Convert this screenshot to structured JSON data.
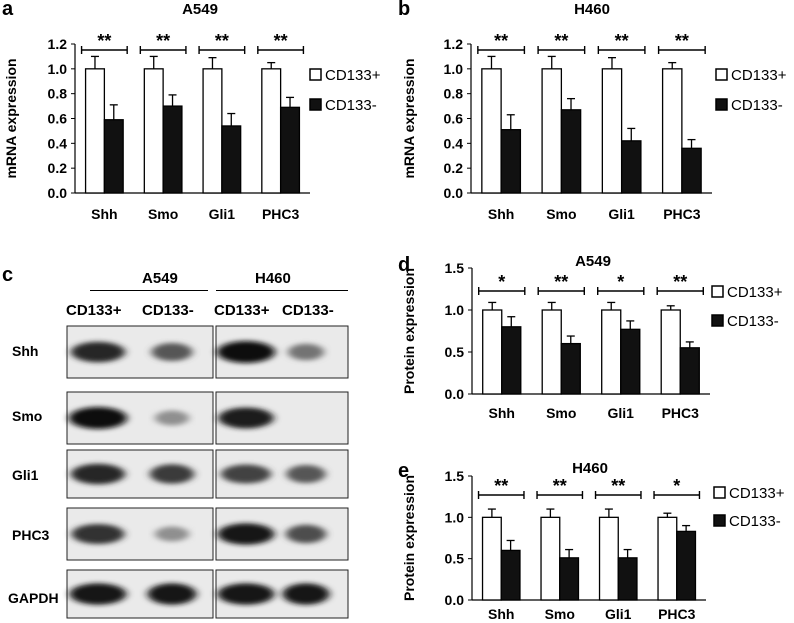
{
  "panels": {
    "a": "a",
    "b": "b",
    "c": "c",
    "d": "d",
    "e": "e"
  },
  "chart_data": [
    {
      "id": "a",
      "type": "bar",
      "title": "A549",
      "ylabel": "mRNA expression",
      "xlabel": "",
      "categories": [
        "Shh",
        "Smo",
        "Gli1",
        "PHC3"
      ],
      "ylim": [
        0,
        1.2
      ],
      "yticks": [
        "0.0",
        "0.2",
        "0.4",
        "0.6",
        "0.8",
        "1.0",
        "1.2"
      ],
      "series": [
        {
          "name": "CD133+",
          "values": [
            1.0,
            1.0,
            1.0,
            1.0
          ],
          "errors": [
            0.1,
            0.1,
            0.09,
            0.05
          ]
        },
        {
          "name": "CD133-",
          "values": [
            0.59,
            0.7,
            0.54,
            0.69
          ],
          "errors": [
            0.12,
            0.09,
            0.1,
            0.08
          ]
        }
      ],
      "significance": [
        "**",
        "**",
        "**",
        "**"
      ],
      "legend_position": "right"
    },
    {
      "id": "b",
      "type": "bar",
      "title": "H460",
      "ylabel": "mRNA expression",
      "xlabel": "",
      "categories": [
        "Shh",
        "Smo",
        "Gli1",
        "PHC3"
      ],
      "ylim": [
        0,
        1.2
      ],
      "yticks": [
        "0.0",
        "0.2",
        "0.4",
        "0.6",
        "0.8",
        "1.0",
        "1.2"
      ],
      "series": [
        {
          "name": "CD133+",
          "values": [
            1.0,
            1.0,
            1.0,
            1.0
          ],
          "errors": [
            0.1,
            0.1,
            0.09,
            0.05
          ]
        },
        {
          "name": "CD133-",
          "values": [
            0.51,
            0.67,
            0.42,
            0.36
          ],
          "errors": [
            0.12,
            0.09,
            0.1,
            0.07
          ]
        }
      ],
      "significance": [
        "**",
        "**",
        "**",
        "**"
      ],
      "legend_position": "right"
    },
    {
      "id": "d",
      "type": "bar",
      "title": "A549",
      "ylabel": "Protein expression",
      "xlabel": "",
      "categories": [
        "Shh",
        "Smo",
        "Gli1",
        "PHC3"
      ],
      "ylim": [
        0,
        1.5
      ],
      "yticks": [
        "0.0",
        "0.5",
        "1.0",
        "1.5"
      ],
      "series": [
        {
          "name": "CD133+",
          "values": [
            1.0,
            1.0,
            1.0,
            1.0
          ],
          "errors": [
            0.09,
            0.09,
            0.09,
            0.05
          ]
        },
        {
          "name": "CD133-",
          "values": [
            0.8,
            0.6,
            0.77,
            0.55
          ],
          "errors": [
            0.12,
            0.09,
            0.1,
            0.07
          ]
        }
      ],
      "significance": [
        "*",
        "**",
        "*",
        "**"
      ],
      "legend_position": "right"
    },
    {
      "id": "e",
      "type": "bar",
      "title": "H460",
      "ylabel": "Protein expression",
      "xlabel": "",
      "categories": [
        "Shh",
        "Smo",
        "Gli1",
        "PHC3"
      ],
      "ylim": [
        0,
        1.5
      ],
      "yticks": [
        "0.0",
        "0.5",
        "1.0",
        "1.5"
      ],
      "series": [
        {
          "name": "CD133+",
          "values": [
            1.0,
            1.0,
            1.0,
            1.0
          ],
          "errors": [
            0.1,
            0.1,
            0.1,
            0.05
          ]
        },
        {
          "name": "CD133-",
          "values": [
            0.6,
            0.51,
            0.51,
            0.83
          ],
          "errors": [
            0.12,
            0.1,
            0.1,
            0.07
          ]
        }
      ],
      "significance": [
        "**",
        "**",
        "**",
        "*"
      ],
      "legend_position": "right"
    }
  ],
  "western_blot": {
    "groups": [
      "A549",
      "H460"
    ],
    "lanes": [
      "CD133+",
      "CD133-",
      "CD133+",
      "CD133-"
    ],
    "proteins": [
      "Shh",
      "Smo",
      "Gli1",
      "PHC3",
      "GAPDH"
    ],
    "band_intensity": {
      "Shh": [
        0.85,
        0.6,
        1.0,
        0.45
      ],
      "Smo": [
        1.0,
        0.3,
        0.9,
        0.0
      ],
      "Gli1": [
        0.85,
        0.75,
        0.7,
        0.6
      ],
      "PHC3": [
        0.8,
        0.3,
        0.95,
        0.65
      ],
      "GAPDH": [
        0.95,
        0.95,
        0.95,
        0.95
      ]
    }
  },
  "colors": {
    "cd133_pos": "#ffffff",
    "cd133_neg": "#111111",
    "stroke": "#000000"
  }
}
